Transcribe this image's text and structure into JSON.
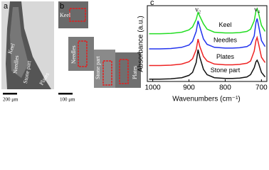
{
  "panel_a": {
    "letter": "a",
    "labels": [
      "Keel",
      "Needles",
      "Stone part",
      "Plates"
    ],
    "scale_bar": "200 μm"
  },
  "panel_b": {
    "letter": "b",
    "labels": [
      "Keel",
      "Needles",
      "Stone part",
      "Plates"
    ],
    "scale_bar": "100 μm"
  },
  "chart_data": {
    "type": "line",
    "letter": "c",
    "xlabel": "Wavenumbers (cm⁻¹)",
    "ylabel": "Absorbance (a.u.)",
    "annotations": [
      "ν₂",
      "ν₄"
    ],
    "xlim": [
      1015,
      685
    ],
    "xticks": [
      1000,
      900,
      800,
      700
    ],
    "ylim": [
      0,
      10
    ],
    "x": [
      1010,
      980,
      950,
      920,
      900,
      890,
      880,
      875,
      870,
      860,
      850,
      830,
      800,
      780,
      760,
      740,
      730,
      720,
      715,
      712,
      708,
      700,
      690
    ],
    "series": [
      {
        "name": "Keel",
        "color": "#22dd22",
        "values": [
          6.3,
          6.3,
          6.35,
          6.5,
          6.8,
          7.2,
          8.2,
          9.1,
          8.6,
          7.6,
          6.9,
          6.5,
          6.4,
          6.4,
          6.45,
          6.6,
          6.9,
          8.0,
          9.3,
          9.6,
          9.0,
          7.4,
          6.6
        ]
      },
      {
        "name": "Needles",
        "color": "#2233ee",
        "values": [
          4.3,
          4.3,
          4.35,
          4.5,
          4.8,
          5.3,
          6.6,
          8.0,
          7.2,
          5.6,
          4.9,
          4.5,
          4.4,
          4.4,
          4.45,
          4.6,
          4.9,
          6.0,
          7.8,
          8.3,
          7.4,
          5.4,
          4.6
        ]
      },
      {
        "name": "Plates",
        "color": "#ee2222",
        "values": [
          2.1,
          2.1,
          2.15,
          2.3,
          2.6,
          3.0,
          4.2,
          5.6,
          4.6,
          3.3,
          2.7,
          2.3,
          2.2,
          2.2,
          2.25,
          2.4,
          2.7,
          4.0,
          5.4,
          5.8,
          5.0,
          3.2,
          2.5
        ]
      },
      {
        "name": "Stone part",
        "color": "#111111",
        "values": [
          0.3,
          0.3,
          0.35,
          0.5,
          0.8,
          1.2,
          2.5,
          4.2,
          3.2,
          1.6,
          0.9,
          0.5,
          0.4,
          0.4,
          0.45,
          0.6,
          0.9,
          1.8,
          2.6,
          2.8,
          2.4,
          1.2,
          0.6
        ]
      }
    ]
  }
}
